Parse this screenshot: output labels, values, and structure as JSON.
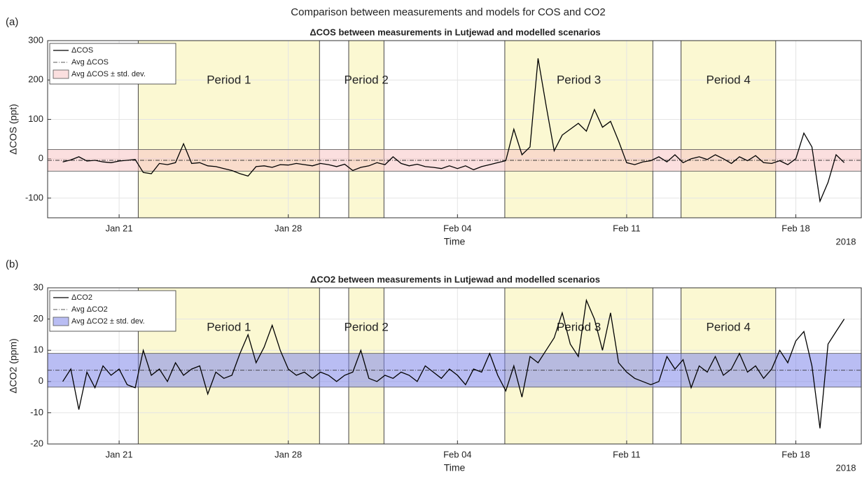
{
  "title": "Comparison between measurements and models for COS and CO2",
  "chart_data": [
    {
      "type": "line",
      "panel_label": "(a)",
      "title": "ΔCOS between measurements in Lutjewad and modelled scenarios",
      "x_label": "Time",
      "y_label": "ΔCOS (ppt)",
      "year_label": "2018",
      "xlim": [
        "2018-01-18T01:00",
        "2018-02-20T17:00"
      ],
      "xticks": [
        {
          "value": "2018-01-21T00:00",
          "label": "Jan 21"
        },
        {
          "value": "2018-01-28T00:00",
          "label": "Jan 28"
        },
        {
          "value": "2018-02-04T00:00",
          "label": "Feb 04"
        },
        {
          "value": "2018-02-11T00:00",
          "label": "Feb 11"
        },
        {
          "value": "2018-02-18T00:00",
          "label": "Feb 18"
        }
      ],
      "ylim": [
        -150,
        300
      ],
      "yticks": [
        -100,
        0,
        100,
        200,
        300
      ],
      "grid": true,
      "periods": [
        {
          "label": "Period 1",
          "start": "2018-01-21T19:00",
          "end": "2018-01-29T07:00"
        },
        {
          "label": "Period 2",
          "start": "2018-01-30T12:00",
          "end": "2018-01-31T23:00"
        },
        {
          "label": "Period 3",
          "start": "2018-02-05T23:00",
          "end": "2018-02-12T02:00"
        },
        {
          "label": "Period 4",
          "start": "2018-02-13T06:00",
          "end": "2018-02-17T04:00"
        }
      ],
      "avg": -4,
      "std": 27.5,
      "avg_label": "Avg ΔCOS",
      "band_label": "Avg ΔCOS ± std. dev.",
      "band_color": "#f7c4c4",
      "x": [
        "2018-01-18T16:00",
        "2018-01-19T00:00",
        "2018-01-19T08:00",
        "2018-01-19T16:00",
        "2018-01-20T00:00",
        "2018-01-20T08:00",
        "2018-01-20T16:00",
        "2018-01-21T00:00",
        "2018-01-21T08:00",
        "2018-01-21T16:00",
        "2018-01-22T00:00",
        "2018-01-22T08:00",
        "2018-01-22T16:00",
        "2018-01-23T00:00",
        "2018-01-23T08:00",
        "2018-01-23T16:00",
        "2018-01-24T00:00",
        "2018-01-24T08:00",
        "2018-01-24T16:00",
        "2018-01-25T00:00",
        "2018-01-25T08:00",
        "2018-01-25T16:00",
        "2018-01-26T00:00",
        "2018-01-26T08:00",
        "2018-01-26T16:00",
        "2018-01-27T00:00",
        "2018-01-27T08:00",
        "2018-01-27T16:00",
        "2018-01-28T00:00",
        "2018-01-28T08:00",
        "2018-01-28T16:00",
        "2018-01-29T00:00",
        "2018-01-29T08:00",
        "2018-01-29T16:00",
        "2018-01-30T00:00",
        "2018-01-30T08:00",
        "2018-01-30T16:00",
        "2018-01-31T00:00",
        "2018-01-31T08:00",
        "2018-01-31T16:00",
        "2018-02-01T00:00",
        "2018-02-01T08:00",
        "2018-02-01T16:00",
        "2018-02-02T00:00",
        "2018-02-02T08:00",
        "2018-02-02T16:00",
        "2018-02-03T00:00",
        "2018-02-03T08:00",
        "2018-02-03T16:00",
        "2018-02-04T00:00",
        "2018-02-04T08:00",
        "2018-02-04T16:00",
        "2018-02-05T00:00",
        "2018-02-05T08:00",
        "2018-02-05T16:00",
        "2018-02-06T00:00",
        "2018-02-06T08:00",
        "2018-02-06T16:00",
        "2018-02-07T00:00",
        "2018-02-07T08:00",
        "2018-02-07T16:00",
        "2018-02-08T00:00",
        "2018-02-08T08:00",
        "2018-02-08T16:00",
        "2018-02-09T00:00",
        "2018-02-09T08:00",
        "2018-02-09T16:00",
        "2018-02-10T00:00",
        "2018-02-10T08:00",
        "2018-02-10T16:00",
        "2018-02-11T00:00",
        "2018-02-11T08:00",
        "2018-02-11T16:00",
        "2018-02-12T00:00",
        "2018-02-12T08:00",
        "2018-02-12T16:00",
        "2018-02-13T00:00",
        "2018-02-13T08:00",
        "2018-02-13T16:00",
        "2018-02-14T00:00",
        "2018-02-14T08:00",
        "2018-02-14T16:00",
        "2018-02-15T00:00",
        "2018-02-15T08:00",
        "2018-02-15T16:00",
        "2018-02-16T00:00",
        "2018-02-16T08:00",
        "2018-02-16T16:00",
        "2018-02-17T00:00",
        "2018-02-17T08:00",
        "2018-02-17T16:00",
        "2018-02-18T00:00",
        "2018-02-18T08:00",
        "2018-02-18T16:00",
        "2018-02-19T00:00",
        "2018-02-19T08:00",
        "2018-02-19T16:00",
        "2018-02-20T00:00"
      ],
      "series": [
        {
          "name": "ΔCOS",
          "color": "#000000",
          "values": [
            -8,
            -3,
            5,
            -6,
            -4,
            -8,
            -10,
            -6,
            -4,
            -2,
            -35,
            -38,
            -12,
            -15,
            -10,
            38,
            -12,
            -10,
            -18,
            -20,
            -25,
            -30,
            -38,
            -44,
            -20,
            -18,
            -22,
            -15,
            -16,
            -12,
            -15,
            -18,
            -12,
            -15,
            -20,
            -14,
            -30,
            -22,
            -18,
            -10,
            -15,
            5,
            -12,
            -18,
            -14,
            -20,
            -22,
            -25,
            -18,
            -25,
            -18,
            -28,
            -20,
            -15,
            -10,
            -5,
            75,
            10,
            30,
            255,
            135,
            20,
            60,
            75,
            90,
            70,
            125,
            80,
            95,
            45,
            -10,
            -15,
            -8,
            -5,
            5,
            -8,
            10,
            -10,
            0,
            5,
            -2,
            10,
            0,
            -12,
            5,
            -5,
            8,
            -10,
            -12,
            -5,
            -15,
            0,
            65,
            30,
            -108,
            -60,
            10,
            -10
          ]
        }
      ]
    },
    {
      "type": "line",
      "panel_label": "(b)",
      "title": "ΔCO2 between measurements in Lutjewad and modelled scenarios",
      "x_label": "Time",
      "y_label": "ΔCO2 (ppm)",
      "year_label": "2018",
      "xlim": [
        "2018-01-18T01:00",
        "2018-02-20T17:00"
      ],
      "xticks": [
        {
          "value": "2018-01-21T00:00",
          "label": "Jan 21"
        },
        {
          "value": "2018-01-28T00:00",
          "label": "Jan 28"
        },
        {
          "value": "2018-02-04T00:00",
          "label": "Feb 04"
        },
        {
          "value": "2018-02-11T00:00",
          "label": "Feb 11"
        },
        {
          "value": "2018-02-18T00:00",
          "label": "Feb 18"
        }
      ],
      "ylim": [
        -20,
        30
      ],
      "yticks": [
        -20,
        -10,
        0,
        10,
        20,
        30
      ],
      "grid": true,
      "periods": [
        {
          "label": "Period 1",
          "start": "2018-01-21T19:00",
          "end": "2018-01-29T07:00"
        },
        {
          "label": "Period 2",
          "start": "2018-01-30T12:00",
          "end": "2018-01-31T23:00"
        },
        {
          "label": "Period 3",
          "start": "2018-02-05T23:00",
          "end": "2018-02-12T02:00"
        },
        {
          "label": "Period 4",
          "start": "2018-02-13T06:00",
          "end": "2018-02-17T04:00"
        }
      ],
      "avg": 3.6,
      "std": 5.4,
      "avg_label": "Avg ΔCO2",
      "band_label": "Avg ΔCO2 ± std. dev.",
      "band_color": "#7f86ea",
      "x": [
        "2018-01-18T16:00",
        "2018-01-19T00:00",
        "2018-01-19T08:00",
        "2018-01-19T16:00",
        "2018-01-20T00:00",
        "2018-01-20T08:00",
        "2018-01-20T16:00",
        "2018-01-21T00:00",
        "2018-01-21T08:00",
        "2018-01-21T16:00",
        "2018-01-22T00:00",
        "2018-01-22T08:00",
        "2018-01-22T16:00",
        "2018-01-23T00:00",
        "2018-01-23T08:00",
        "2018-01-23T16:00",
        "2018-01-24T00:00",
        "2018-01-24T08:00",
        "2018-01-24T16:00",
        "2018-01-25T00:00",
        "2018-01-25T08:00",
        "2018-01-25T16:00",
        "2018-01-26T00:00",
        "2018-01-26T08:00",
        "2018-01-26T16:00",
        "2018-01-27T00:00",
        "2018-01-27T08:00",
        "2018-01-27T16:00",
        "2018-01-28T00:00",
        "2018-01-28T08:00",
        "2018-01-28T16:00",
        "2018-01-29T00:00",
        "2018-01-29T08:00",
        "2018-01-29T16:00",
        "2018-01-30T00:00",
        "2018-01-30T08:00",
        "2018-01-30T16:00",
        "2018-01-31T00:00",
        "2018-01-31T08:00",
        "2018-01-31T16:00",
        "2018-02-01T00:00",
        "2018-02-01T08:00",
        "2018-02-01T16:00",
        "2018-02-02T00:00",
        "2018-02-02T08:00",
        "2018-02-02T16:00",
        "2018-02-03T00:00",
        "2018-02-03T08:00",
        "2018-02-03T16:00",
        "2018-02-04T00:00",
        "2018-02-04T08:00",
        "2018-02-04T16:00",
        "2018-02-05T00:00",
        "2018-02-05T08:00",
        "2018-02-05T16:00",
        "2018-02-06T00:00",
        "2018-02-06T08:00",
        "2018-02-06T16:00",
        "2018-02-07T00:00",
        "2018-02-07T08:00",
        "2018-02-07T16:00",
        "2018-02-08T00:00",
        "2018-02-08T08:00",
        "2018-02-08T16:00",
        "2018-02-09T00:00",
        "2018-02-09T08:00",
        "2018-02-09T16:00",
        "2018-02-10T00:00",
        "2018-02-10T08:00",
        "2018-02-10T16:00",
        "2018-02-11T00:00",
        "2018-02-11T08:00",
        "2018-02-11T16:00",
        "2018-02-12T00:00",
        "2018-02-12T08:00",
        "2018-02-12T16:00",
        "2018-02-13T00:00",
        "2018-02-13T08:00",
        "2018-02-13T16:00",
        "2018-02-14T00:00",
        "2018-02-14T08:00",
        "2018-02-14T16:00",
        "2018-02-15T00:00",
        "2018-02-15T08:00",
        "2018-02-15T16:00",
        "2018-02-16T00:00",
        "2018-02-16T08:00",
        "2018-02-16T16:00",
        "2018-02-17T00:00",
        "2018-02-17T08:00",
        "2018-02-17T16:00",
        "2018-02-18T00:00",
        "2018-02-18T08:00",
        "2018-02-18T16:00",
        "2018-02-19T00:00",
        "2018-02-19T08:00",
        "2018-02-19T16:00",
        "2018-02-20T00:00"
      ],
      "series": [
        {
          "name": "ΔCO2",
          "color": "#000000",
          "values": [
            0,
            4,
            -9,
            3,
            -2,
            5,
            2,
            4,
            -1,
            -2,
            10,
            2,
            4,
            0,
            6,
            2,
            4,
            5,
            -4,
            3,
            1,
            2,
            9,
            15,
            6,
            11,
            18,
            10,
            4,
            2,
            3,
            1,
            3,
            2,
            0,
            2,
            3,
            10,
            1,
            0,
            2,
            1,
            3,
            2,
            0,
            5,
            3,
            1,
            4,
            2,
            -1,
            4,
            3,
            9,
            2,
            -3,
            5,
            -5,
            8,
            6,
            10,
            14,
            22,
            12,
            8,
            26,
            20,
            10,
            22,
            6,
            3,
            1,
            0,
            -1,
            0,
            8,
            4,
            7,
            -2,
            5,
            3,
            8,
            2,
            4,
            9,
            3,
            5,
            1,
            4,
            10,
            6,
            13,
            16,
            5,
            -15,
            12,
            16,
            20
          ]
        }
      ]
    }
  ]
}
